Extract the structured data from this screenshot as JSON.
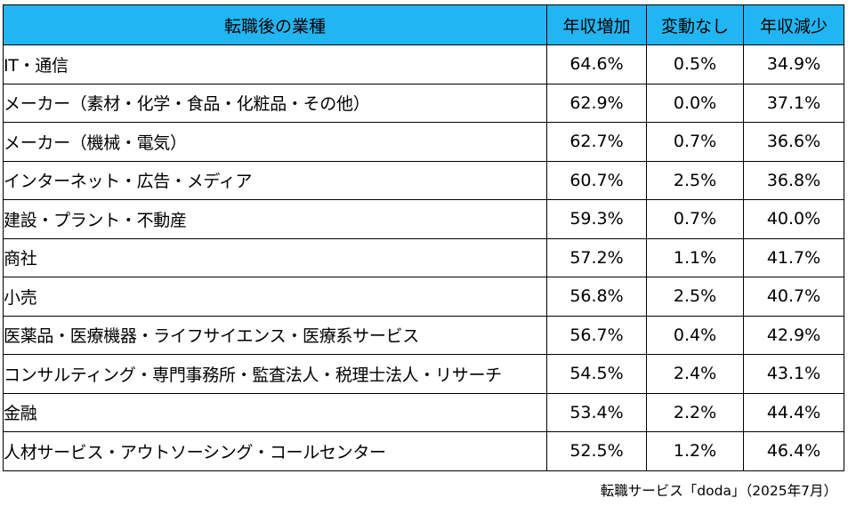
{
  "chart_data": {
    "type": "table",
    "columns": [
      "転職後の業種",
      "年収増加",
      "変動なし",
      "年収減少"
    ],
    "rows": [
      {
        "industry": "IT・通信",
        "increase": "64.6%",
        "unchanged": "0.5%",
        "decrease": "34.9%"
      },
      {
        "industry": "メーカー（素材・化学・食品・化粧品・その他）",
        "increase": "62.9%",
        "unchanged": "0.0%",
        "decrease": "37.1%"
      },
      {
        "industry": "メーカー（機械・電気）",
        "increase": "62.7%",
        "unchanged": "0.7%",
        "decrease": "36.6%"
      },
      {
        "industry": "インターネット・広告・メディア",
        "increase": "60.7%",
        "unchanged": "2.5%",
        "decrease": "36.8%"
      },
      {
        "industry": "建設・プラント・不動産",
        "increase": "59.3%",
        "unchanged": "0.7%",
        "decrease": "40.0%"
      },
      {
        "industry": "商社",
        "increase": "57.2%",
        "unchanged": "1.1%",
        "decrease": "41.7%"
      },
      {
        "industry": "小売",
        "increase": "56.8%",
        "unchanged": "2.5%",
        "decrease": "40.7%"
      },
      {
        "industry": "医薬品・医療機器・ライフサイエンス・医療系サービス",
        "increase": "56.7%",
        "unchanged": "0.4%",
        "decrease": "42.9%"
      },
      {
        "industry": "コンサルティング・専門事務所・監査法人・税理士法人・リサーチ",
        "increase": "54.5%",
        "unchanged": "2.4%",
        "decrease": "43.1%"
      },
      {
        "industry": "金融",
        "increase": "53.4%",
        "unchanged": "2.2%",
        "decrease": "44.4%"
      },
      {
        "industry": "人材サービス・アウトソーシング・コールセンター",
        "increase": "52.5%",
        "unchanged": "1.2%",
        "decrease": "46.4%"
      }
    ],
    "header_color": "#20b6f3",
    "source": "転職サービス「doda」（2025年7月）"
  }
}
